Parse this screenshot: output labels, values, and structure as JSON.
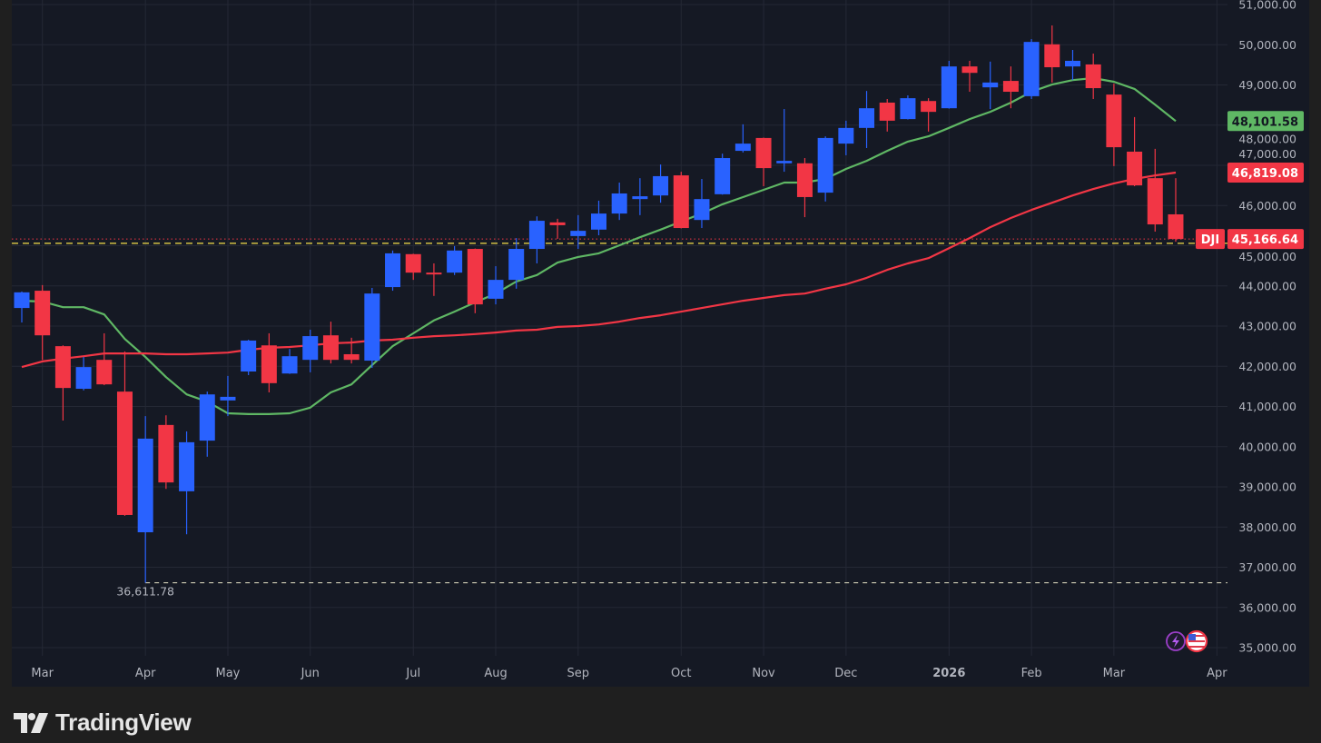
{
  "symbol": "DJI",
  "brand": "TradingView",
  "colors": {
    "up": "#2962ff",
    "down": "#f23645",
    "ma_fast": "#5fb764",
    "ma_slow": "#f23645",
    "grid": "#242835",
    "ref_line": "#f5e04a"
  },
  "icons": [
    "lightning-icon",
    "us-flag-icon"
  ],
  "chart_data": {
    "type": "candlestick",
    "title": "DJI",
    "interval": "weekly",
    "ylim": [
      35000,
      51000
    ],
    "y_ticks": [
      35000,
      36000,
      37000,
      38000,
      39000,
      40000,
      41000,
      42000,
      43000,
      44000,
      45000,
      46000,
      47000,
      48000,
      49000,
      50000,
      51000
    ],
    "x_ticks": [
      {
        "label": "Mar",
        "index": 1
      },
      {
        "label": "Apr",
        "index": 6
      },
      {
        "label": "May",
        "index": 10
      },
      {
        "label": "Jun",
        "index": 14
      },
      {
        "label": "Jul",
        "index": 19
      },
      {
        "label": "Aug",
        "index": 23
      },
      {
        "label": "Sep",
        "index": 27
      },
      {
        "label": "Oct",
        "index": 32
      },
      {
        "label": "Nov",
        "index": 36
      },
      {
        "label": "Dec",
        "index": 40
      },
      {
        "label": "2026",
        "index": 45,
        "bold": true
      },
      {
        "label": "Feb",
        "index": 49
      },
      {
        "label": "Mar",
        "index": 53
      },
      {
        "label": "Apr",
        "index": 58
      }
    ],
    "ohlc_fields": [
      "open",
      "high",
      "low",
      "close"
    ],
    "candles": [
      [
        43450,
        43860,
        43090,
        43840
      ],
      [
        43880,
        44020,
        42160,
        42770
      ],
      [
        42500,
        42520,
        40650,
        41460
      ],
      [
        41440,
        42230,
        41400,
        41980
      ],
      [
        42160,
        42820,
        41530,
        41550
      ],
      [
        41370,
        42370,
        38280,
        38300
      ],
      [
        37870,
        40760,
        36611.78,
        40200
      ],
      [
        40540,
        40780,
        38950,
        39110
      ],
      [
        38890,
        40380,
        37820,
        40110
      ],
      [
        40150,
        41370,
        39750,
        41300
      ],
      [
        41150,
        41760,
        40760,
        41240
      ],
      [
        41870,
        42660,
        41780,
        42640
      ],
      [
        42520,
        42820,
        41350,
        41580
      ],
      [
        41820,
        42430,
        41810,
        42250
      ],
      [
        42160,
        42910,
        41850,
        42750
      ],
      [
        42770,
        43110,
        42070,
        42160
      ],
      [
        42300,
        42710,
        42070,
        42160
      ],
      [
        42140,
        43950,
        41960,
        43810
      ],
      [
        43970,
        44880,
        43880,
        44810
      ],
      [
        44790,
        44800,
        44150,
        44330
      ],
      [
        44330,
        44560,
        43750,
        44310
      ],
      [
        44330,
        44990,
        44270,
        44880
      ],
      [
        44920,
        44930,
        43320,
        43540
      ],
      [
        43680,
        44490,
        43540,
        44150
      ],
      [
        44150,
        45190,
        43930,
        44920
      ],
      [
        44920,
        45730,
        44560,
        45620
      ],
      [
        45580,
        45670,
        45170,
        45510
      ],
      [
        45240,
        45760,
        44920,
        45370
      ],
      [
        45400,
        46120,
        45260,
        45800
      ],
      [
        45800,
        46570,
        45640,
        46300
      ],
      [
        46160,
        46680,
        45760,
        46230
      ],
      [
        46250,
        47020,
        46070,
        46730
      ],
      [
        46750,
        46840,
        45430,
        45440
      ],
      [
        45640,
        46660,
        45440,
        46160
      ],
      [
        46280,
        47290,
        46270,
        47180
      ],
      [
        47360,
        48020,
        47320,
        47540
      ],
      [
        47680,
        47690,
        46480,
        46930
      ],
      [
        47050,
        48400,
        46840,
        47110
      ],
      [
        47050,
        47180,
        45710,
        46210
      ],
      [
        46320,
        47720,
        46100,
        47680
      ],
      [
        47540,
        48110,
        47250,
        47930
      ],
      [
        47930,
        48850,
        47430,
        48420
      ],
      [
        48560,
        48650,
        47840,
        48110
      ],
      [
        48150,
        48740,
        48140,
        48670
      ],
      [
        48600,
        48670,
        47840,
        48330
      ],
      [
        48420,
        49600,
        48410,
        49460
      ],
      [
        49460,
        49600,
        48830,
        49300
      ],
      [
        48940,
        49580,
        48400,
        49060
      ],
      [
        49100,
        49460,
        48420,
        48830
      ],
      [
        48720,
        50140,
        48650,
        50070
      ],
      [
        50010,
        50480,
        49060,
        49440
      ],
      [
        49460,
        49870,
        49120,
        49600
      ],
      [
        49510,
        49780,
        48650,
        48920
      ],
      [
        48760,
        49030,
        46980,
        47450
      ],
      [
        47340,
        48200,
        46480,
        46500
      ],
      [
        46680,
        47410,
        45350,
        45530
      ],
      [
        45780,
        46680,
        45100,
        45166.64
      ]
    ],
    "series": [
      {
        "name": "MA fast",
        "color": "#5fb764",
        "last_label": "48,101.58",
        "values": [
          43630,
          43610,
          43470,
          43470,
          43290,
          42680,
          42230,
          41730,
          41300,
          41120,
          40830,
          40810,
          40810,
          40830,
          40970,
          41350,
          41550,
          42030,
          42500,
          42820,
          43140,
          43360,
          43590,
          43810,
          44110,
          44270,
          44580,
          44720,
          44810,
          45010,
          45210,
          45400,
          45600,
          45800,
          46030,
          46210,
          46390,
          46570,
          46570,
          46660,
          46910,
          47110,
          47360,
          47590,
          47720,
          47930,
          48150,
          48330,
          48560,
          48830,
          49010,
          49120,
          49170,
          49080,
          48900,
          48510,
          48101.58
        ]
      },
      {
        "name": "MA slow",
        "color": "#f23645",
        "last_label": "46,819.08",
        "values": [
          41980,
          42120,
          42190,
          42250,
          42320,
          42320,
          42320,
          42300,
          42300,
          42320,
          42340,
          42410,
          42460,
          42480,
          42520,
          42570,
          42590,
          42640,
          42660,
          42710,
          42750,
          42770,
          42800,
          42840,
          42890,
          42910,
          42980,
          43000,
          43040,
          43110,
          43200,
          43270,
          43360,
          43450,
          43540,
          43630,
          43700,
          43770,
          43810,
          43930,
          44040,
          44200,
          44400,
          44560,
          44690,
          44940,
          45190,
          45460,
          45690,
          45890,
          46070,
          46250,
          46410,
          46550,
          46660,
          46750,
          46819.08
        ]
      }
    ],
    "last_price": 45166.64,
    "last_price_label": "45,166.64",
    "low_marker": {
      "value": 36611.78,
      "label": "36,611.78",
      "index": 6
    },
    "reference_line": 45060
  }
}
